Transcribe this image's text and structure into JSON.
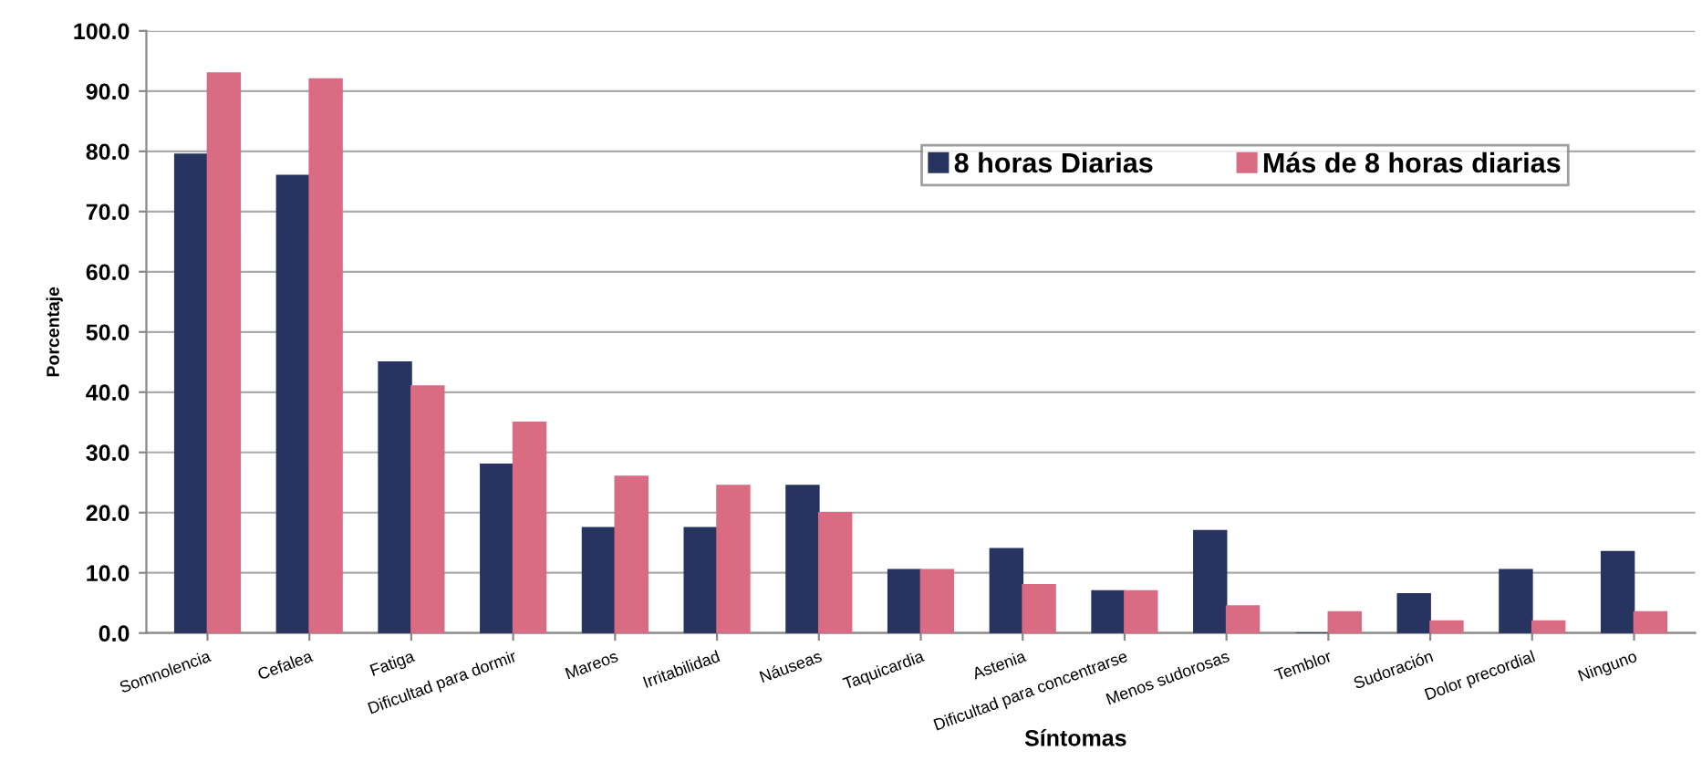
{
  "chart_data": {
    "type": "bar",
    "xlabel": "Síntomas",
    "ylabel": "Porcentaje",
    "categories": [
      "Somnolencia",
      "Cefalea",
      "Fatiga",
      "Dificultad para dormir",
      "Mareos",
      "Irritabilidad",
      "Náuseas",
      "Taquicardia",
      "Astenia",
      "Dificultad para concentrarse",
      "Menos sudorosas",
      "Temblor",
      "Sudoración",
      "Dolor precordial",
      "Ninguno"
    ],
    "series": [
      {
        "name": "8 horas Diarias",
        "color": "#27345f",
        "values": [
          79.5,
          76,
          45,
          28,
          17.5,
          17.5,
          24.5,
          10.5,
          14,
          7,
          17,
          0,
          6.5,
          10.5,
          13.5
        ]
      },
      {
        "name": "Más de 8 horas diarias",
        "color": "#d96b82",
        "values": [
          93,
          92,
          41,
          35,
          26,
          24.5,
          20,
          10.5,
          8,
          7,
          4.5,
          3.5,
          2,
          2,
          3.5
        ]
      }
    ],
    "ylim": [
      0,
      100
    ],
    "yticks": [
      {
        "value": 0,
        "label": "0.0"
      },
      {
        "value": 10,
        "label": "10.0"
      },
      {
        "value": 20,
        "label": "20.0"
      },
      {
        "value": 30,
        "label": "30.0"
      },
      {
        "value": 40,
        "label": "40.0"
      },
      {
        "value": 50,
        "label": "50.0"
      },
      {
        "value": 60,
        "label": "60.0"
      },
      {
        "value": 70,
        "label": "70.0"
      },
      {
        "value": 80,
        "label": "80.0"
      },
      {
        "value": 90,
        "label": "90.0"
      },
      {
        "value": 100,
        "label": "100.0"
      }
    ],
    "grid": "y",
    "legend": "top right"
  }
}
